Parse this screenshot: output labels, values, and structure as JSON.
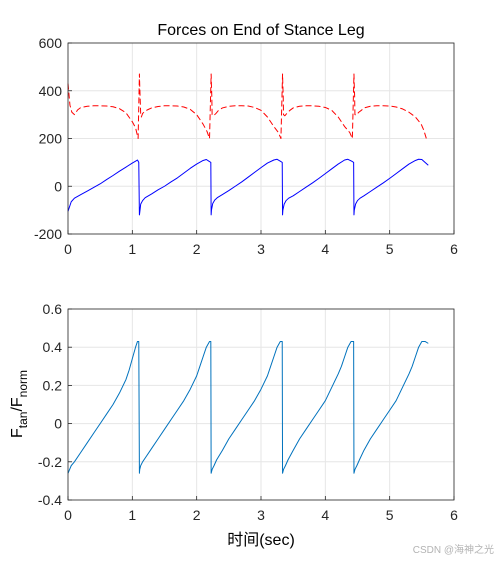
{
  "watermark": "CSDN @海神之光",
  "chart_data": [
    {
      "type": "line",
      "title": "Forces on End of Stance Leg",
      "xlabel": "",
      "ylabel": "",
      "xlim": [
        0,
        6
      ],
      "ylim": [
        -200,
        600
      ],
      "xticks": [
        0,
        1,
        2,
        3,
        4,
        5,
        6
      ],
      "yticks": [
        -200,
        0,
        200,
        400,
        600
      ],
      "grid": true,
      "series": [
        {
          "style": "dashed",
          "color": "#ff0000",
          "x": [
            0,
            0.03,
            0.06,
            0.1,
            0.15,
            0.2,
            0.3,
            0.4,
            0.5,
            0.6,
            0.7,
            0.8,
            0.9,
            1.0,
            1.05,
            1.09,
            1.11,
            1.115,
            1.12,
            1.13,
            1.14,
            1.16,
            1.2,
            1.25,
            1.3,
            1.4,
            1.5,
            1.6,
            1.7,
            1.8,
            1.9,
            2.0,
            2.1,
            2.16,
            2.2,
            2.225,
            2.23,
            2.235,
            2.24,
            2.26,
            2.3,
            2.34,
            2.4,
            2.5,
            2.6,
            2.7,
            2.8,
            2.9,
            3.0,
            3.1,
            3.2,
            3.27,
            3.31,
            3.335,
            3.34,
            3.345,
            3.35,
            3.37,
            3.41,
            3.45,
            3.5,
            3.6,
            3.7,
            3.8,
            3.9,
            4.0,
            4.1,
            4.2,
            4.3,
            4.38,
            4.42,
            4.445,
            4.45,
            4.455,
            4.46,
            4.48,
            4.52,
            4.56,
            4.6,
            4.7,
            4.8,
            4.9,
            5.0,
            5.1,
            5.2,
            5.3,
            5.4,
            5.49,
            5.53,
            5.57
          ],
          "values": [
            430,
            340,
            310,
            300,
            320,
            330,
            335,
            337,
            337,
            336,
            333,
            325,
            308,
            270,
            245,
            200,
            470,
            420,
            380,
            300,
            290,
            305,
            315,
            322,
            328,
            334,
            337,
            337,
            336,
            332,
            322,
            300,
            260,
            230,
            200,
            470,
            420,
            380,
            300,
            295,
            305,
            318,
            328,
            335,
            337,
            337,
            336,
            330,
            318,
            290,
            250,
            225,
            200,
            470,
            420,
            380,
            300,
            295,
            308,
            318,
            328,
            335,
            337,
            337,
            335,
            330,
            318,
            290,
            250,
            225,
            200,
            470,
            420,
            380,
            300,
            298,
            310,
            318,
            328,
            335,
            337,
            337,
            336,
            332,
            324,
            310,
            290,
            260,
            235,
            200
          ]
        },
        {
          "style": "solid",
          "color": "#0000ff",
          "x": [
            0,
            0.05,
            0.1,
            0.2,
            0.3,
            0.4,
            0.5,
            0.6,
            0.7,
            0.8,
            0.9,
            1.0,
            1.05,
            1.08,
            1.1,
            1.11,
            1.115,
            1.13,
            1.16,
            1.2,
            1.3,
            1.4,
            1.5,
            1.6,
            1.7,
            1.8,
            1.9,
            2.0,
            2.1,
            2.15,
            2.19,
            2.22,
            2.225,
            2.23,
            2.25,
            2.28,
            2.32,
            2.4,
            2.5,
            2.6,
            2.7,
            2.8,
            2.9,
            3.0,
            3.1,
            3.2,
            3.25,
            3.3,
            3.33,
            3.335,
            3.34,
            3.36,
            3.39,
            3.43,
            3.5,
            3.6,
            3.7,
            3.8,
            3.9,
            4.0,
            4.1,
            4.2,
            4.3,
            4.35,
            4.41,
            4.44,
            4.445,
            4.45,
            4.47,
            4.5,
            4.54,
            4.6,
            4.7,
            4.8,
            4.9,
            5.0,
            5.1,
            5.2,
            5.3,
            5.4,
            5.45,
            5.5,
            5.55,
            5.6
          ],
          "values": [
            -105,
            -65,
            -50,
            -35,
            -20,
            -5,
            10,
            28,
            45,
            63,
            80,
            97,
            105,
            110,
            100,
            -120,
            -110,
            -75,
            -60,
            -48,
            -32,
            -15,
            0,
            18,
            35,
            55,
            75,
            93,
            108,
            112,
            105,
            100,
            -120,
            -100,
            -72,
            -58,
            -48,
            -35,
            -18,
            0,
            18,
            38,
            58,
            78,
            97,
            110,
            113,
            105,
            100,
            -120,
            -100,
            -75,
            -60,
            -50,
            -40,
            -22,
            -4,
            14,
            33,
            53,
            73,
            93,
            110,
            113,
            105,
            100,
            -120,
            -100,
            -75,
            -60,
            -50,
            -40,
            -22,
            -4,
            14,
            33,
            53,
            73,
            93,
            108,
            113,
            112,
            100,
            88
          ]
        }
      ]
    },
    {
      "type": "line",
      "title": "",
      "xlabel": "时间(sec)",
      "ylabel": "F_tan/F_norm",
      "ylabel_main": "F",
      "ylabel_sub1": "tan",
      "ylabel_mid": "/F",
      "ylabel_sub2": "norm",
      "xlim": [
        0,
        6
      ],
      "ylim": [
        -0.4,
        0.6
      ],
      "xticks": [
        0,
        1,
        2,
        3,
        4,
        5,
        6
      ],
      "yticks": [
        -0.4,
        -0.2,
        0,
        0.2,
        0.4,
        0.6
      ],
      "grid": true,
      "series": [
        {
          "style": "solid",
          "color": "#0072bd",
          "x": [
            0,
            0.05,
            0.1,
            0.2,
            0.3,
            0.4,
            0.5,
            0.6,
            0.7,
            0.8,
            0.9,
            0.95,
            1.0,
            1.05,
            1.08,
            1.1,
            1.11,
            1.115,
            1.13,
            1.16,
            1.2,
            1.3,
            1.4,
            1.5,
            1.6,
            1.7,
            1.8,
            1.9,
            2.0,
            2.05,
            2.1,
            2.15,
            2.2,
            2.22,
            2.225,
            2.24,
            2.27,
            2.31,
            2.4,
            2.5,
            2.6,
            2.7,
            2.8,
            2.9,
            3.0,
            3.1,
            3.15,
            3.2,
            3.25,
            3.3,
            3.33,
            3.335,
            3.35,
            3.38,
            3.42,
            3.5,
            3.6,
            3.7,
            3.8,
            3.9,
            4.0,
            4.1,
            4.2,
            4.25,
            4.3,
            4.35,
            4.4,
            4.44,
            4.445,
            4.46,
            4.49,
            4.53,
            4.6,
            4.7,
            4.8,
            4.9,
            5.0,
            5.1,
            5.2,
            5.3,
            5.35,
            5.4,
            5.45,
            5.5,
            5.55,
            5.6
          ],
          "values": [
            -0.26,
            -0.22,
            -0.2,
            -0.15,
            -0.1,
            -0.05,
            0.0,
            0.05,
            0.1,
            0.16,
            0.23,
            0.28,
            0.34,
            0.4,
            0.43,
            0.43,
            -0.26,
            -0.24,
            -0.22,
            -0.2,
            -0.18,
            -0.13,
            -0.08,
            -0.03,
            0.02,
            0.07,
            0.12,
            0.18,
            0.25,
            0.3,
            0.35,
            0.4,
            0.43,
            0.43,
            -0.26,
            -0.24,
            -0.22,
            -0.19,
            -0.14,
            -0.08,
            -0.03,
            0.02,
            0.07,
            0.12,
            0.18,
            0.25,
            0.3,
            0.35,
            0.4,
            0.43,
            0.43,
            -0.26,
            -0.24,
            -0.22,
            -0.19,
            -0.14,
            -0.08,
            -0.03,
            0.02,
            0.07,
            0.12,
            0.19,
            0.26,
            0.3,
            0.35,
            0.4,
            0.43,
            0.43,
            -0.26,
            -0.24,
            -0.22,
            -0.19,
            -0.14,
            -0.08,
            -0.03,
            0.02,
            0.07,
            0.12,
            0.19,
            0.26,
            0.3,
            0.35,
            0.4,
            0.43,
            0.43,
            0.42
          ]
        }
      ]
    }
  ]
}
